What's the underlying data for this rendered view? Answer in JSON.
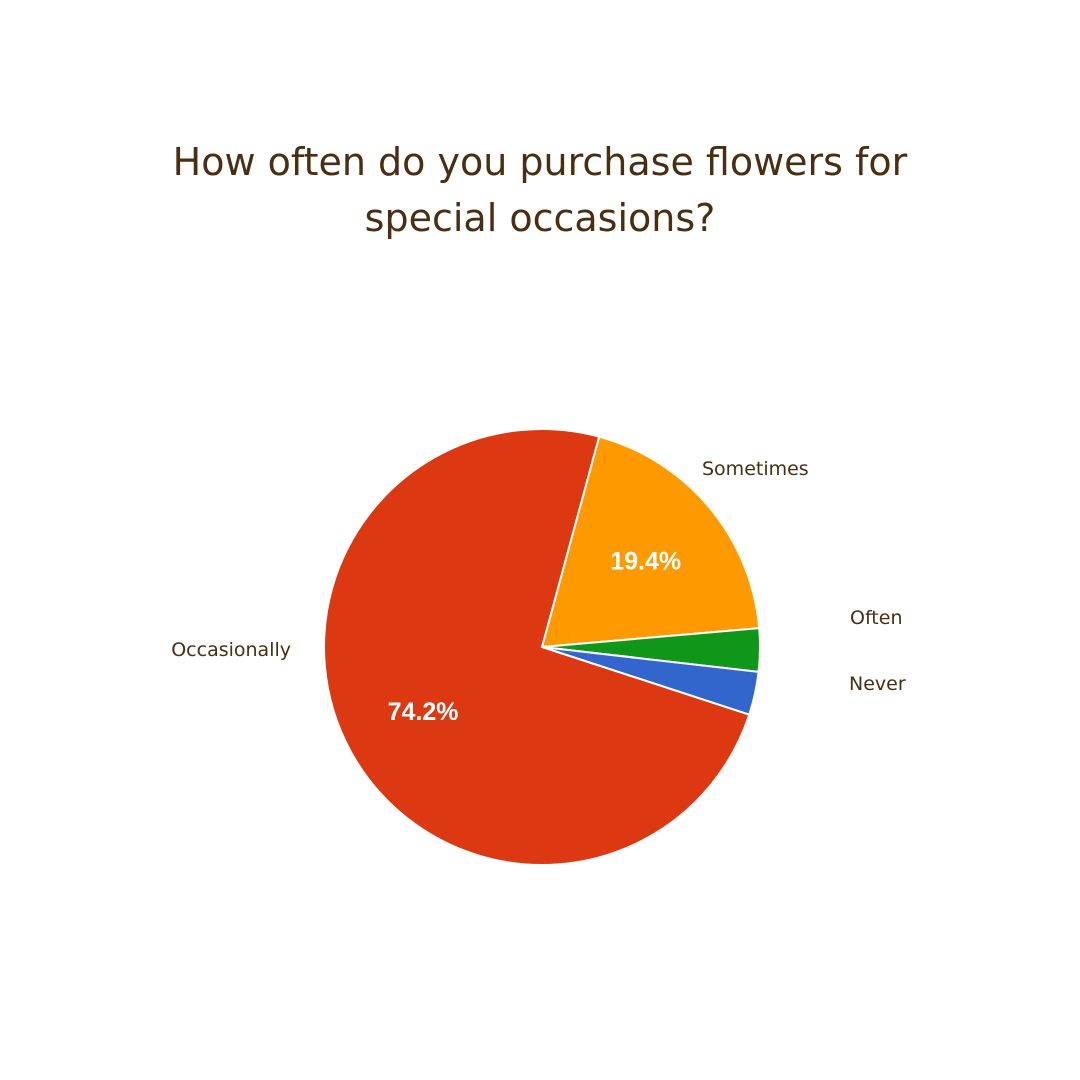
{
  "chart_data": {
    "type": "pie",
    "title_lines": [
      "How often do you purchase flowers for",
      "special occasions?"
    ],
    "categories": [
      "Sometimes",
      "Often",
      "Never",
      "Occasionally"
    ],
    "values": [
      19.4,
      3.2,
      3.2,
      74.2
    ],
    "value_labels": [
      "19.4%",
      "",
      "",
      "74.2%"
    ],
    "colors": [
      "#ff9900",
      "#109618",
      "#3366cc",
      "#dc3912"
    ],
    "legend": "none"
  }
}
